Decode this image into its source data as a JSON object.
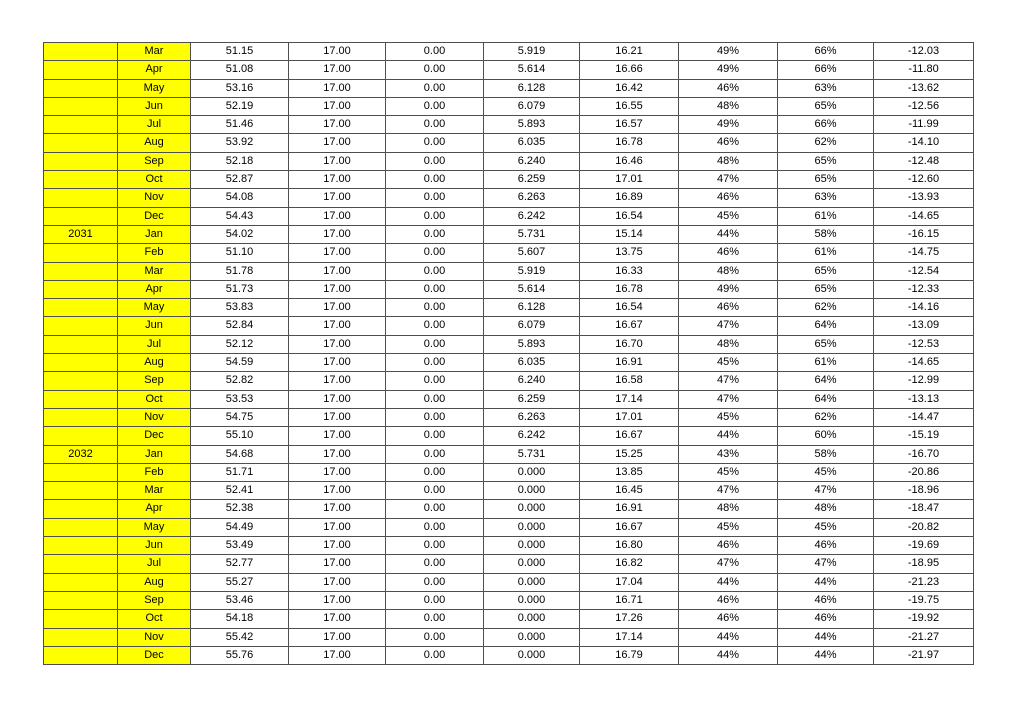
{
  "page": {
    "background": "#ffffff"
  },
  "table": {
    "highlight_color": "#ffff00",
    "border_color": "#4f4f4f",
    "text_color": "#000000",
    "rows": [
      {
        "year": "",
        "month": "Mar",
        "values": [
          "51.15",
          "17.00",
          "0.00",
          "5.919",
          "16.21",
          "49%",
          "66%",
          "-12.03"
        ]
      },
      {
        "year": "",
        "month": "Apr",
        "values": [
          "51.08",
          "17.00",
          "0.00",
          "5.614",
          "16.66",
          "49%",
          "66%",
          "-11.80"
        ]
      },
      {
        "year": "",
        "month": "May",
        "values": [
          "53.16",
          "17.00",
          "0.00",
          "6.128",
          "16.42",
          "46%",
          "63%",
          "-13.62"
        ]
      },
      {
        "year": "",
        "month": "Jun",
        "values": [
          "52.19",
          "17.00",
          "0.00",
          "6.079",
          "16.55",
          "48%",
          "65%",
          "-12.56"
        ]
      },
      {
        "year": "",
        "month": "Jul",
        "values": [
          "51.46",
          "17.00",
          "0.00",
          "5.893",
          "16.57",
          "49%",
          "66%",
          "-11.99"
        ]
      },
      {
        "year": "",
        "month": "Aug",
        "values": [
          "53.92",
          "17.00",
          "0.00",
          "6.035",
          "16.78",
          "46%",
          "62%",
          "-14.10"
        ]
      },
      {
        "year": "",
        "month": "Sep",
        "values": [
          "52.18",
          "17.00",
          "0.00",
          "6.240",
          "16.46",
          "48%",
          "65%",
          "-12.48"
        ]
      },
      {
        "year": "",
        "month": "Oct",
        "values": [
          "52.87",
          "17.00",
          "0.00",
          "6.259",
          "17.01",
          "47%",
          "65%",
          "-12.60"
        ]
      },
      {
        "year": "",
        "month": "Nov",
        "values": [
          "54.08",
          "17.00",
          "0.00",
          "6.263",
          "16.89",
          "46%",
          "63%",
          "-13.93"
        ]
      },
      {
        "year": "",
        "month": "Dec",
        "values": [
          "54.43",
          "17.00",
          "0.00",
          "6.242",
          "16.54",
          "45%",
          "61%",
          "-14.65"
        ]
      },
      {
        "year": "2031",
        "month": "Jan",
        "values": [
          "54.02",
          "17.00",
          "0.00",
          "5.731",
          "15.14",
          "44%",
          "58%",
          "-16.15"
        ]
      },
      {
        "year": "",
        "month": "Feb",
        "values": [
          "51.10",
          "17.00",
          "0.00",
          "5.607",
          "13.75",
          "46%",
          "61%",
          "-14.75"
        ]
      },
      {
        "year": "",
        "month": "Mar",
        "values": [
          "51.78",
          "17.00",
          "0.00",
          "5.919",
          "16.33",
          "48%",
          "65%",
          "-12.54"
        ]
      },
      {
        "year": "",
        "month": "Apr",
        "values": [
          "51.73",
          "17.00",
          "0.00",
          "5.614",
          "16.78",
          "49%",
          "65%",
          "-12.33"
        ]
      },
      {
        "year": "",
        "month": "May",
        "values": [
          "53.83",
          "17.00",
          "0.00",
          "6.128",
          "16.54",
          "46%",
          "62%",
          "-14.16"
        ]
      },
      {
        "year": "",
        "month": "Jun",
        "values": [
          "52.84",
          "17.00",
          "0.00",
          "6.079",
          "16.67",
          "47%",
          "64%",
          "-13.09"
        ]
      },
      {
        "year": "",
        "month": "Jul",
        "values": [
          "52.12",
          "17.00",
          "0.00",
          "5.893",
          "16.70",
          "48%",
          "65%",
          "-12.53"
        ]
      },
      {
        "year": "",
        "month": "Aug",
        "values": [
          "54.59",
          "17.00",
          "0.00",
          "6.035",
          "16.91",
          "45%",
          "61%",
          "-14.65"
        ]
      },
      {
        "year": "",
        "month": "Sep",
        "values": [
          "52.82",
          "17.00",
          "0.00",
          "6.240",
          "16.58",
          "47%",
          "64%",
          "-12.99"
        ]
      },
      {
        "year": "",
        "month": "Oct",
        "values": [
          "53.53",
          "17.00",
          "0.00",
          "6.259",
          "17.14",
          "47%",
          "64%",
          "-13.13"
        ]
      },
      {
        "year": "",
        "month": "Nov",
        "values": [
          "54.75",
          "17.00",
          "0.00",
          "6.263",
          "17.01",
          "45%",
          "62%",
          "-14.47"
        ]
      },
      {
        "year": "",
        "month": "Dec",
        "values": [
          "55.10",
          "17.00",
          "0.00",
          "6.242",
          "16.67",
          "44%",
          "60%",
          "-15.19"
        ]
      },
      {
        "year": "2032",
        "month": "Jan",
        "values": [
          "54.68",
          "17.00",
          "0.00",
          "5.731",
          "15.25",
          "43%",
          "58%",
          "-16.70"
        ]
      },
      {
        "year": "",
        "month": "Feb",
        "values": [
          "51.71",
          "17.00",
          "0.00",
          "0.000",
          "13.85",
          "45%",
          "45%",
          "-20.86"
        ]
      },
      {
        "year": "",
        "month": "Mar",
        "values": [
          "52.41",
          "17.00",
          "0.00",
          "0.000",
          "16.45",
          "47%",
          "47%",
          "-18.96"
        ]
      },
      {
        "year": "",
        "month": "Apr",
        "values": [
          "52.38",
          "17.00",
          "0.00",
          "0.000",
          "16.91",
          "48%",
          "48%",
          "-18.47"
        ]
      },
      {
        "year": "",
        "month": "May",
        "values": [
          "54.49",
          "17.00",
          "0.00",
          "0.000",
          "16.67",
          "45%",
          "45%",
          "-20.82"
        ]
      },
      {
        "year": "",
        "month": "Jun",
        "values": [
          "53.49",
          "17.00",
          "0.00",
          "0.000",
          "16.80",
          "46%",
          "46%",
          "-19.69"
        ]
      },
      {
        "year": "",
        "month": "Jul",
        "values": [
          "52.77",
          "17.00",
          "0.00",
          "0.000",
          "16.82",
          "47%",
          "47%",
          "-18.95"
        ]
      },
      {
        "year": "",
        "month": "Aug",
        "values": [
          "55.27",
          "17.00",
          "0.00",
          "0.000",
          "17.04",
          "44%",
          "44%",
          "-21.23"
        ]
      },
      {
        "year": "",
        "month": "Sep",
        "values": [
          "53.46",
          "17.00",
          "0.00",
          "0.000",
          "16.71",
          "46%",
          "46%",
          "-19.75"
        ]
      },
      {
        "year": "",
        "month": "Oct",
        "values": [
          "54.18",
          "17.00",
          "0.00",
          "0.000",
          "17.26",
          "46%",
          "46%",
          "-19.92"
        ]
      },
      {
        "year": "",
        "month": "Nov",
        "values": [
          "55.42",
          "17.00",
          "0.00",
          "0.000",
          "17.14",
          "44%",
          "44%",
          "-21.27"
        ]
      },
      {
        "year": "",
        "month": "Dec",
        "values": [
          "55.76",
          "17.00",
          "0.00",
          "0.000",
          "16.79",
          "44%",
          "44%",
          "-21.97"
        ]
      }
    ]
  }
}
